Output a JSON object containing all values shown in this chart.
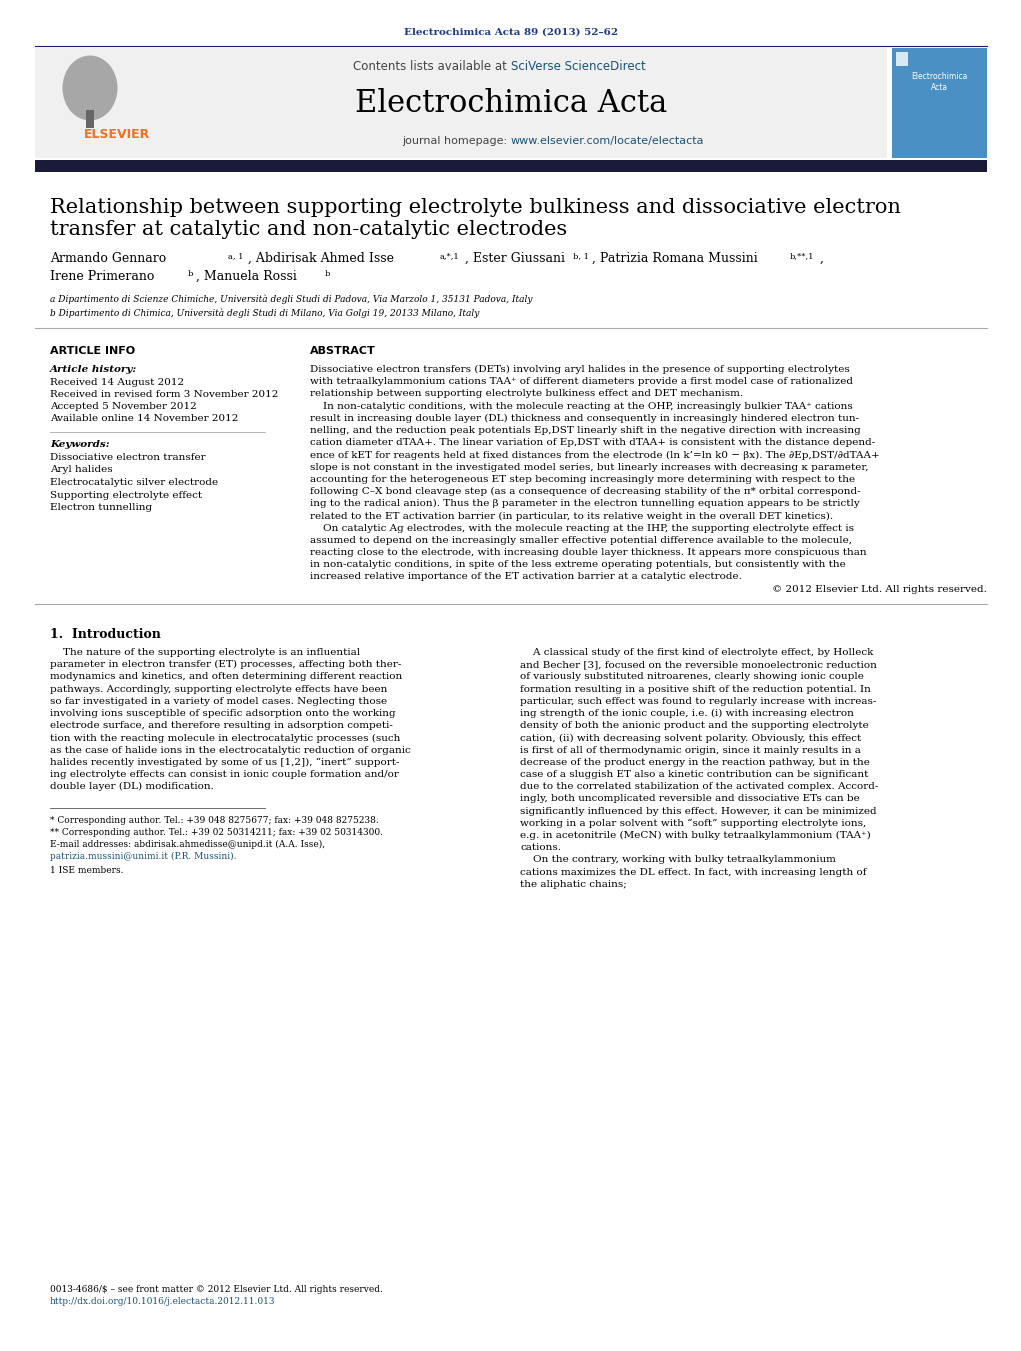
{
  "page_width": 10.21,
  "page_height": 13.51,
  "background_color": "#ffffff",
  "journal_ref_text": "Electrochimica Acta 89 (2013) 52–62",
  "journal_ref_color": "#1a3a8a",
  "header_bg": "#f0f0f0",
  "header_text": "Contents lists available at SciVerse ScienceDirect",
  "journal_name": "Electrochimica Acta",
  "journal_homepage_plain": "journal homepage: ",
  "journal_homepage_link": "www.elsevier.com/locate/electacta",
  "top_bar_color": "#1a1a3a",
  "article_title_line1": "Relationship between supporting electrolyte bulkiness and dissociative electron",
  "article_title_line2": "transfer at catalytic and non-catalytic electrodes",
  "affil_a": "a Dipartimento di Scienze Chimiche, Università degli Studi di Padova, Via Marzolo 1, 35131 Padova, Italy",
  "affil_b": "b Dipartimento di Chimica, Università degli Studi di Milano, Via Golgi 19, 20133 Milano, Italy",
  "article_info_header": "ARTICLE INFO",
  "abstract_header": "ABSTRACT",
  "article_history_label": "Article history:",
  "received": "Received 14 August 2012",
  "revised": "Received in revised form 3 November 2012",
  "accepted": "Accepted 5 November 2012",
  "available": "Available online 14 November 2012",
  "keywords_label": "Keywords:",
  "keywords": [
    "Dissociative electron transfer",
    "Aryl halides",
    "Electrocatalytic silver electrode",
    "Supporting electrolyte effect",
    "Electron tunnelling"
  ],
  "abstract_lines": [
    "Dissociative electron transfers (DETs) involving aryl halides in the presence of supporting electrolytes",
    "with tetraalkylammonium cations TAA⁺ of different diameters provide a first model case of rationalized",
    "relationship between supporting electrolyte bulkiness effect and DET mechanism.",
    "    In non-catalytic conditions, with the molecule reacting at the OHP, increasingly bulkier TAA⁺ cations",
    "result in increasing double layer (DL) thickness and consequently in increasingly hindered electron tun-",
    "nelling, and the reduction peak potentials Ep,DST linearly shift in the negative direction with increasing",
    "cation diameter dTAA+. The linear variation of Ep,DST with dTAA+ is consistent with the distance depend-",
    "ence of kET for reagents held at fixed distances from the electrode (ln k’=ln k0 − βx). The ∂Ep,DST/∂dTAA+",
    "slope is not constant in the investigated model series, but linearly increases with decreasing κ parameter,",
    "accounting for the heterogeneous ET step becoming increasingly more determining with respect to the",
    "following C–X bond cleavage step (as a consequence of decreasing stability of the π* orbital correspond-",
    "ing to the radical anion). Thus the β parameter in the electron tunnelling equation appears to be strictly",
    "related to the ET activation barrier (in particular, to its relative weight in the overall DET kinetics).",
    "    On catalytic Ag electrodes, with the molecule reacting at the IHP, the supporting electrolyte effect is",
    "assumed to depend on the increasingly smaller effective potential difference available to the molecule,",
    "reacting close to the electrode, with increasing double layer thickness. It appears more conspicuous than",
    "in non-catalytic conditions, in spite of the less extreme operating potentials, but consistently with the",
    "increased relative importance of the ET activation barrier at a catalytic electrode.",
    "© 2012 Elsevier Ltd. All rights reserved."
  ],
  "intro_header": "1.  Introduction",
  "intro_col1_lines": [
    "    The nature of the supporting electrolyte is an influential",
    "parameter in electron transfer (ET) processes, affecting both ther-",
    "modynamics and kinetics, and often determining different reaction",
    "pathways. Accordingly, supporting electrolyte effects have been",
    "so far investigated in a variety of model cases. Neglecting those",
    "involving ions susceptible of specific adsorption onto the working",
    "electrode surface, and therefore resulting in adsorption competi-",
    "tion with the reacting molecule in electrocatalytic processes (such",
    "as the case of halide ions in the electrocatalytic reduction of organic",
    "halides recently investigated by some of us [1,2]), “inert” support-",
    "ing electrolyte effects can consist in ionic couple formation and/or",
    "double layer (DL) modification."
  ],
  "intro_col2_lines": [
    "    A classical study of the first kind of electrolyte effect, by Holleck",
    "and Becher [3], focused on the reversible monoelectronic reduction",
    "of variously substituted nitroarenes, clearly showing ionic couple",
    "formation resulting in a positive shift of the reduction potential. In",
    "particular, such effect was found to regularly increase with increas-",
    "ing strength of the ionic couple, i.e. (i) with increasing electron",
    "density of both the anionic product and the supporting electrolyte",
    "cation, (ii) with decreasing solvent polarity. Obviously, this effect",
    "is first of all of thermodynamic origin, since it mainly results in a",
    "decrease of the product energy in the reaction pathway, but in the",
    "case of a sluggish ET also a kinetic contribution can be significant",
    "due to the correlated stabilization of the activated complex. Accord-",
    "ingly, both uncomplicated reversible and dissociative ETs can be",
    "significantly influenced by this effect. However, it can be minimized",
    "working in a polar solvent with “soft” supporting electrolyte ions,",
    "e.g. in acetonitrile (MeCN) with bulky tetraalkylammonium (TAA⁺)",
    "cations.",
    "    On the contrary, working with bulky tetraalkylammonium",
    "cations maximizes the DL effect. In fact, with increasing length of",
    "the aliphatic chains;"
  ],
  "footnote1": "* Corresponding author. Tel.: +39 048 8275677; fax: +39 048 8275238.",
  "footnote2": "** Corresponding author. Tel.: +39 02 50314211; fax: +39 02 50314300.",
  "footnote3": "E-mail addresses: abdirisak.ahmedisse@unipd.it (A.A. Isse),",
  "footnote4": "patrizia.mussini@unimi.it (P.R. Mussini).",
  "footnote5": "1 ISE members.",
  "doi_line1": "0013-4686/$ – see front matter © 2012 Elsevier Ltd. All rights reserved.",
  "doi_line2": "http://dx.doi.org/10.1016/j.electacta.2012.11.013",
  "link_color": "#1a5276",
  "elsevier_orange": "#F37021",
  "cover_blue": "#4a90c4",
  "title_fontsize": 15,
  "body_fontsize": 7.5,
  "small_fontsize": 6.5
}
